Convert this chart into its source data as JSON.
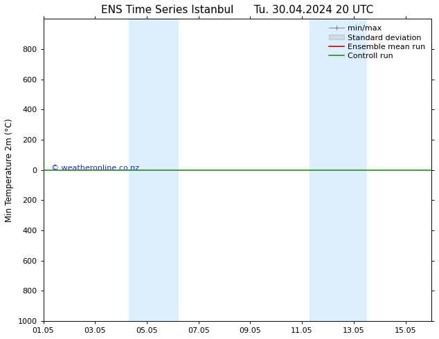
{
  "title": "ENS Time Series Istanbul",
  "title2": "Tu. 30.04.2024 20 UTC",
  "ylabel": "Min Temperature 2m (°C)",
  "watermark": "© weatheronline.co.nz",
  "xlim": [
    0,
    15
  ],
  "ylim_bottom": 1000,
  "ylim_top": -1000,
  "yticks": [
    -800,
    -600,
    -400,
    -200,
    0,
    200,
    400,
    600,
    800,
    1000
  ],
  "xtick_labels": [
    "01.05",
    "03.05",
    "05.05",
    "07.05",
    "09.05",
    "11.05",
    "13.05",
    "15.05"
  ],
  "xtick_positions": [
    0,
    2,
    4,
    6,
    8,
    10,
    12,
    14
  ],
  "blue_bands": [
    [
      3.3,
      4.0
    ],
    [
      4.0,
      5.2
    ],
    [
      10.3,
      11.2
    ],
    [
      11.2,
      12.5
    ]
  ],
  "green_line_y": 0,
  "bg_color": "#ffffff",
  "band_color": "#ddeeff",
  "green_line_color": "#228B22",
  "red_line_color": "#cc0000",
  "legend_items": [
    "min/max",
    "Standard deviation",
    "Ensemble mean run",
    "Controll run"
  ],
  "watermark_color": "#0000cc",
  "title_fontsize": 11,
  "axis_fontsize": 8.5,
  "tick_fontsize": 8,
  "legend_fontsize": 8
}
